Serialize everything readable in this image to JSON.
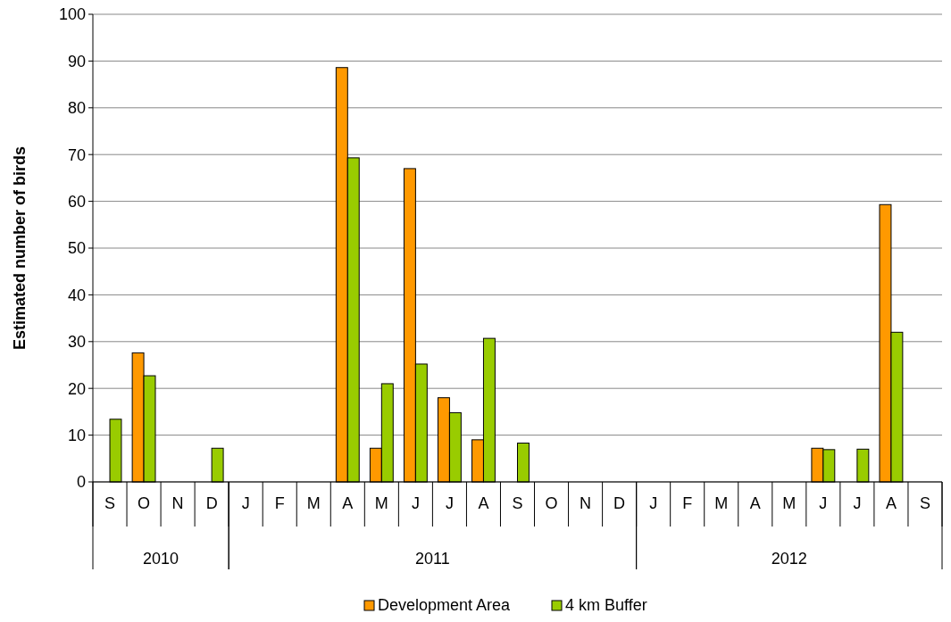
{
  "chart_data": {
    "type": "bar",
    "ylabel": "Estimated number of birds",
    "categories": [
      "S",
      "O",
      "N",
      "D",
      "J",
      "F",
      "M",
      "A",
      "M",
      "J",
      "J",
      "A",
      "S",
      "O",
      "N",
      "D",
      "J",
      "F",
      "M",
      "A",
      "M",
      "J",
      "J",
      "A",
      "S"
    ],
    "series": [
      {
        "name": "Development Area",
        "color": "#ff9900",
        "values": [
          null,
          27.6,
          null,
          null,
          null,
          null,
          null,
          88.6,
          7.2,
          67,
          18,
          9,
          null,
          null,
          null,
          null,
          null,
          null,
          null,
          null,
          null,
          7.2,
          null,
          59.3,
          null
        ]
      },
      {
        "name": "4 km Buffer",
        "color": "#99cc00",
        "values": [
          13.4,
          22.7,
          null,
          7.2,
          null,
          null,
          null,
          69.3,
          21,
          25.2,
          14.8,
          30.7,
          8.3,
          null,
          null,
          null,
          null,
          null,
          null,
          null,
          null,
          6.9,
          7,
          32,
          null
        ]
      }
    ],
    "ylim": [
      0,
      100
    ],
    "yticks": [
      0,
      10,
      20,
      30,
      40,
      50,
      60,
      70,
      80,
      90,
      100
    ],
    "grid": "y",
    "legend": "bottom",
    "annotations": [
      "2010",
      "2011",
      "2012"
    ]
  }
}
